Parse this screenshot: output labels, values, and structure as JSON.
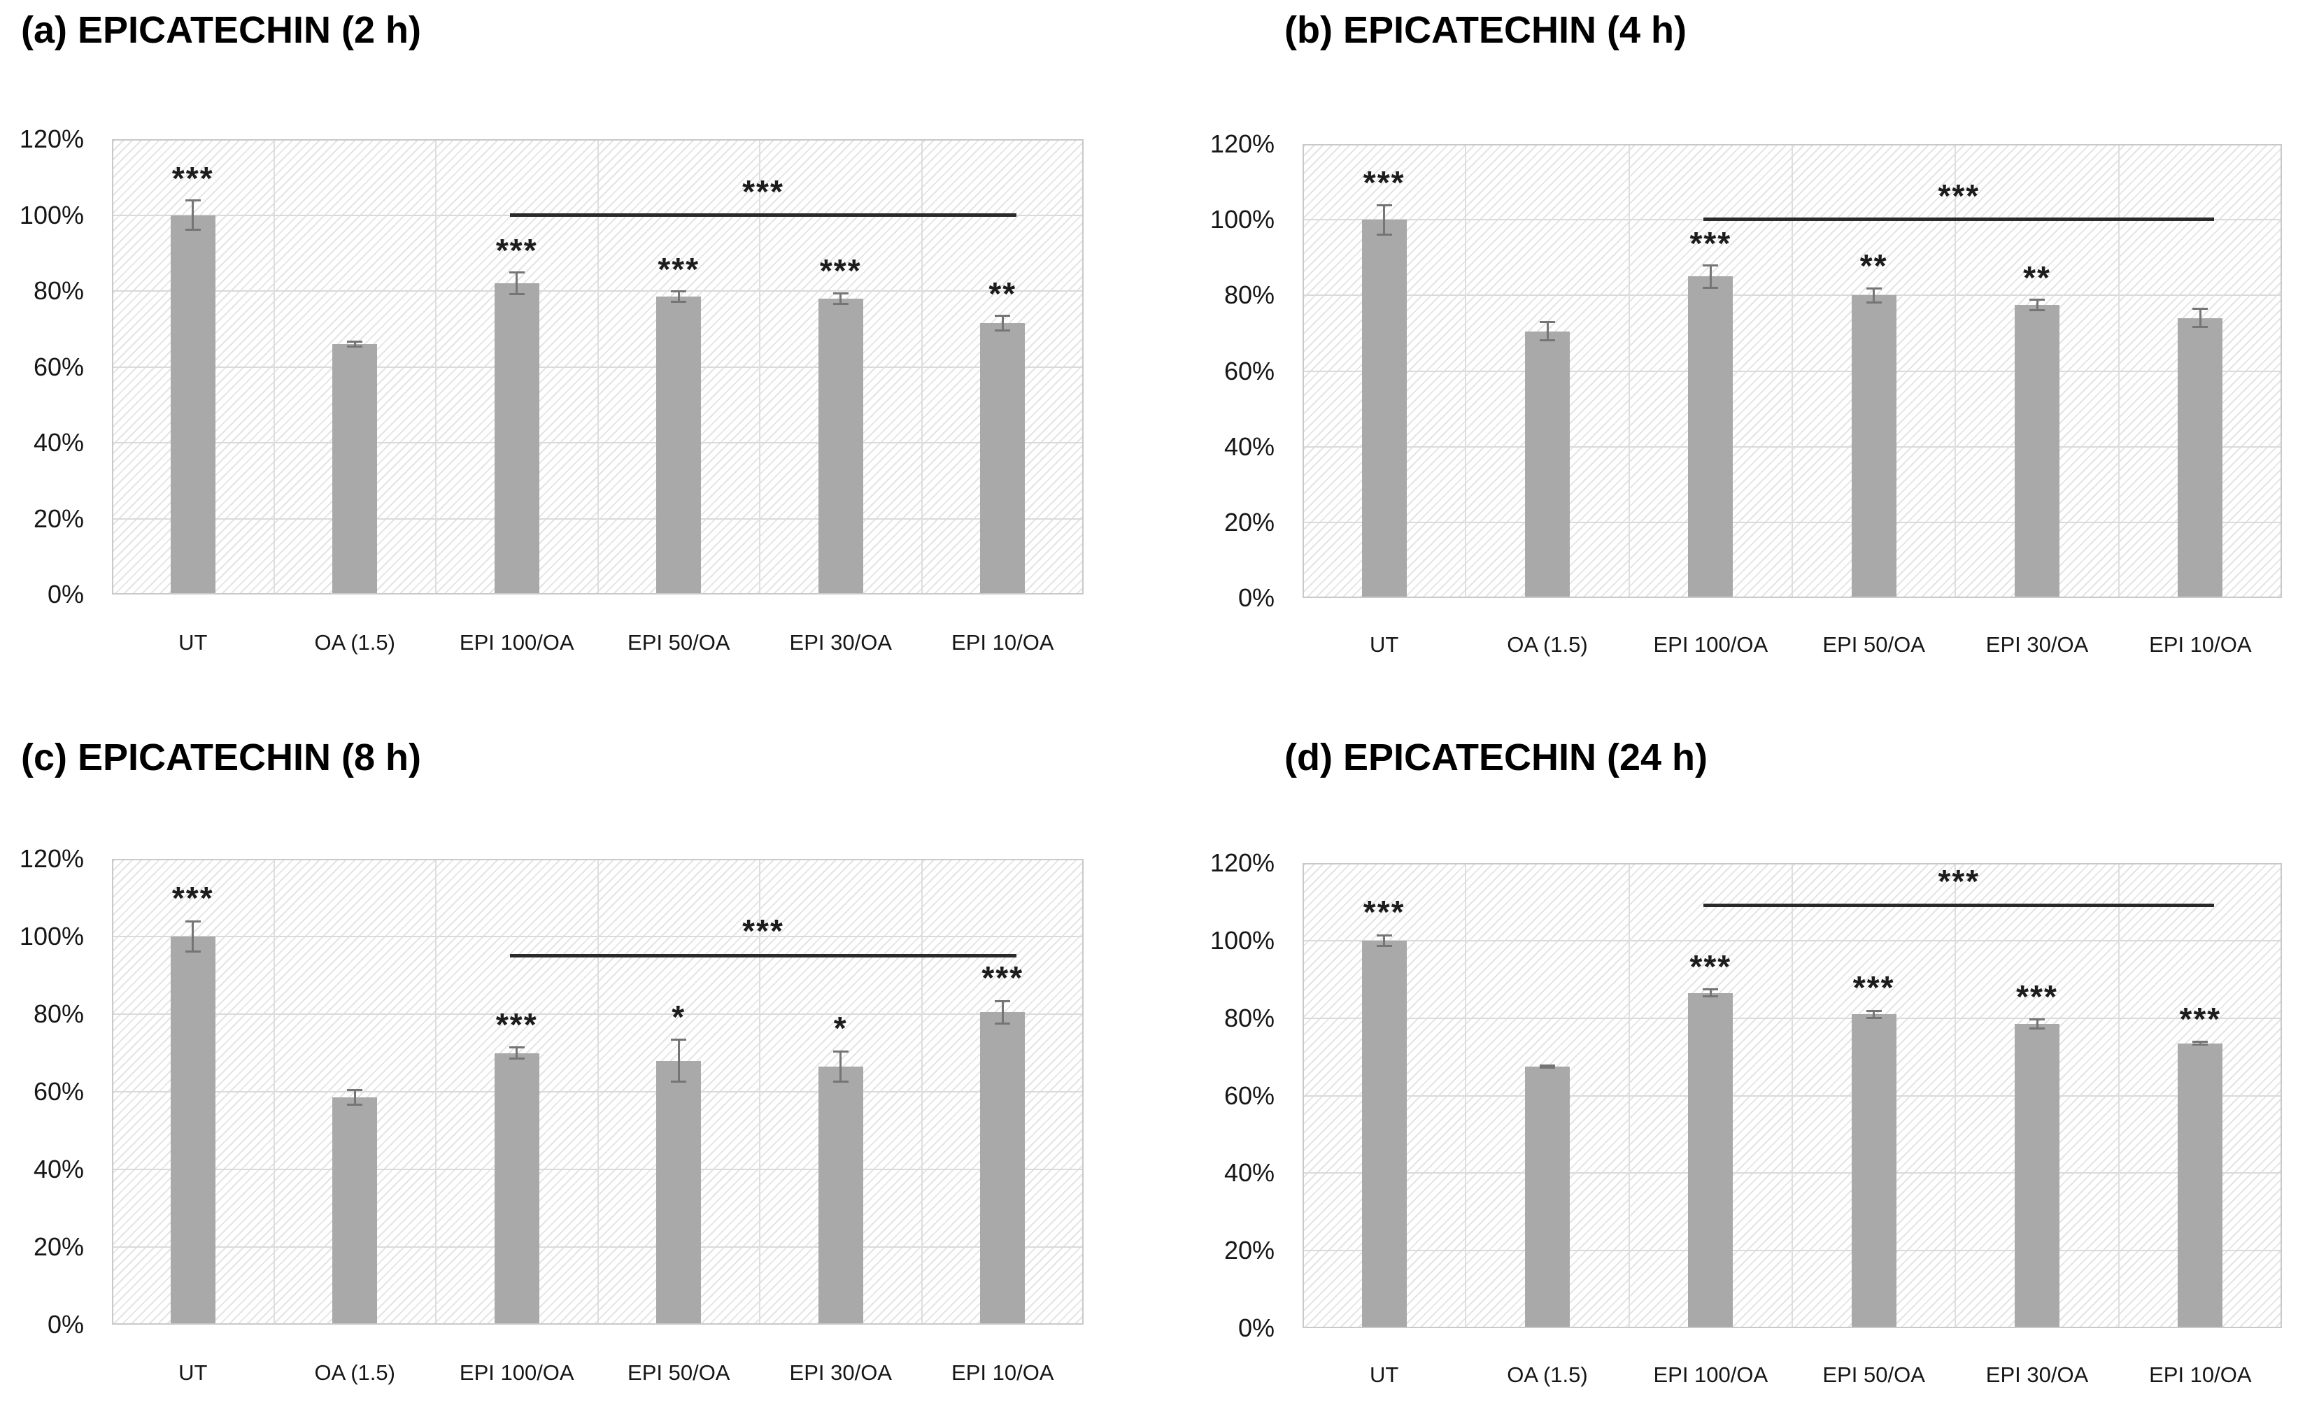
{
  "figure": {
    "background": "#ffffff",
    "y_axis_ticks": [
      "120%",
      "100%",
      "80%",
      "60%",
      "40%",
      "20%",
      "0%"
    ],
    "colors": {
      "bar": "#a9a9a9",
      "error_bar": "#757575",
      "grid_line": "#dadada",
      "plot_border": "#c9c9c9",
      "hatch_line": "#e4e4e4",
      "significance_line": "#2a2a2a",
      "text": "#161616",
      "title_text": "#000000"
    }
  },
  "chart_data": [
    {
      "panel": "a",
      "type": "bar",
      "title": "(a) EPICATECHIN (2 h)",
      "categories": [
        "UT",
        "OA (1.5)",
        "EPI 100/OA",
        "EPI 50/OA",
        "EPI 30/OA",
        "EPI 10/OA"
      ],
      "values": [
        100,
        66,
        82,
        78.5,
        78,
        71.5
      ],
      "errors": [
        4,
        0.8,
        3,
        1.5,
        1.5,
        2
      ],
      "bar_significance": [
        "***",
        "",
        "***",
        "***",
        "***",
        "**"
      ],
      "sig_line": {
        "from_category": "EPI 100/OA",
        "to_category": "EPI 10/OA",
        "y_percent": 100.5,
        "label": "***"
      },
      "ylim": [
        0,
        120
      ],
      "grid": true,
      "xlabel": "",
      "ylabel": ""
    },
    {
      "panel": "b",
      "type": "bar",
      "title": "(b) EPICATECHIN (4 h)",
      "categories": [
        "UT",
        "OA (1.5)",
        "EPI 100/OA",
        "EPI 50/OA",
        "EPI 30/OA",
        "EPI 10/OA"
      ],
      "values": [
        100,
        70.5,
        85,
        80,
        77.5,
        74
      ],
      "errors": [
        4,
        2.5,
        3,
        2,
        1.5,
        2.5
      ],
      "bar_significance": [
        "***",
        "",
        "***",
        "**",
        "**",
        ""
      ],
      "sig_line": {
        "from_category": "EPI 100/OA",
        "to_category": "EPI 10/OA",
        "y_percent": 100.5,
        "label": "***"
      },
      "ylim": [
        0,
        120
      ],
      "grid": true,
      "xlabel": "",
      "ylabel": ""
    },
    {
      "panel": "c",
      "type": "bar",
      "title": "(c) EPICATECHIN (8 h)",
      "categories": [
        "UT",
        "OA (1.5)",
        "EPI 100/OA",
        "EPI 50/OA",
        "EPI 30/OA",
        "EPI 10/OA"
      ],
      "values": [
        100,
        58.5,
        70,
        68,
        66.5,
        80.5
      ],
      "errors": [
        4,
        2,
        1.5,
        5.5,
        4,
        3
      ],
      "bar_significance": [
        "***",
        "",
        "***",
        "*",
        "*",
        "***"
      ],
      "sig_line": {
        "from_category": "EPI 100/OA",
        "to_category": "EPI 10/OA",
        "y_percent": 95.5,
        "label": "***"
      },
      "ylim": [
        0,
        120
      ],
      "grid": true,
      "xlabel": "",
      "ylabel": ""
    },
    {
      "panel": "d",
      "type": "bar",
      "title": "(d) EPICATECHIN (24 h)",
      "categories": [
        "UT",
        "OA (1.5)",
        "EPI 100/OA",
        "EPI 50/OA",
        "EPI 30/OA",
        "EPI 10/OA"
      ],
      "values": [
        100,
        67.5,
        86.5,
        81,
        78.5,
        73.5
      ],
      "errors": [
        1.5,
        0.4,
        1,
        1,
        1.2,
        0.5
      ],
      "bar_significance": [
        "***",
        "",
        "***",
        "***",
        "***",
        "***"
      ],
      "sig_line": {
        "from_category": "EPI 100/OA",
        "to_category": "EPI 10/OA",
        "y_percent": 109.5,
        "label": "***"
      },
      "ylim": [
        0,
        120
      ],
      "grid": true,
      "xlabel": "",
      "ylabel": ""
    }
  ]
}
